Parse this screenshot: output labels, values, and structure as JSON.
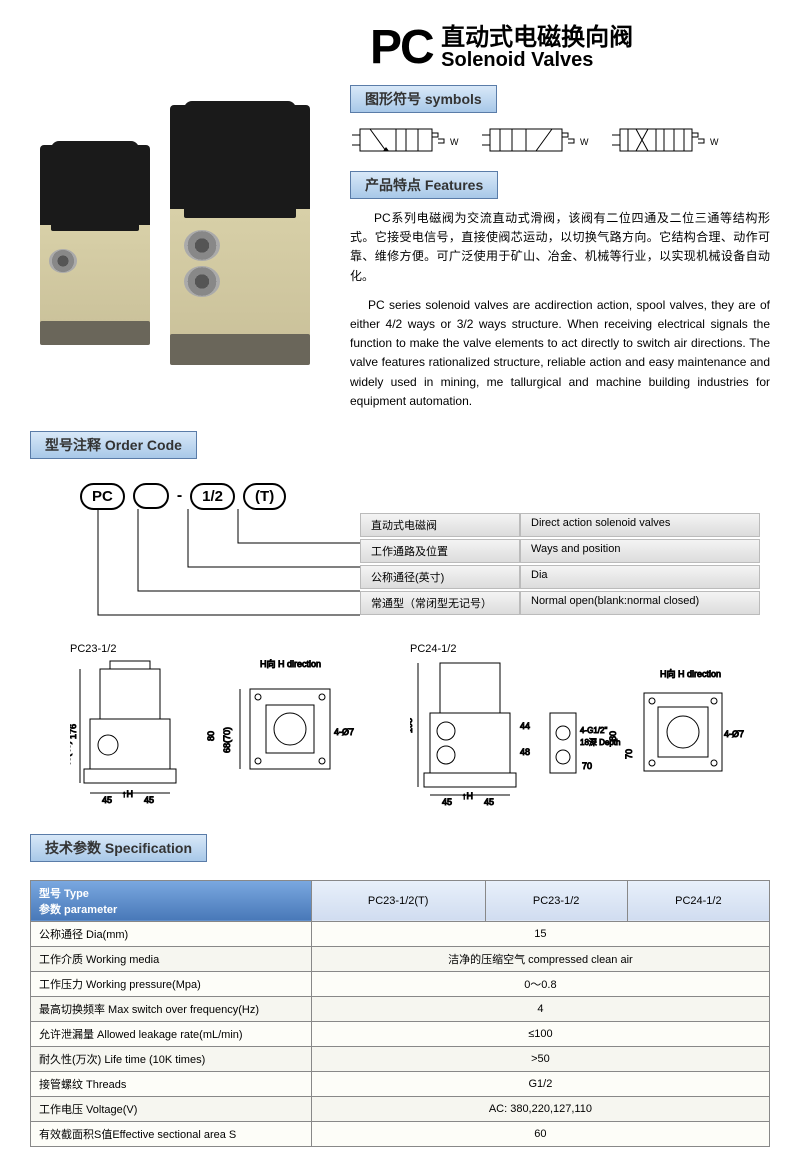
{
  "title": {
    "prefix": "PC",
    "cn": "直动式电磁换向阀",
    "en": "Solenoid Valves"
  },
  "sections": {
    "symbols": "图形符号 symbols",
    "features": "产品特点 Features",
    "order": "型号注释 Order Code",
    "spec": "技术参数 Specification"
  },
  "features": {
    "cn": "PC系列电磁阀为交流直动式滑阀，该阀有二位四通及二位三通等结构形式。它接受电信号，直接使阀芯运动，以切换气路方向。它结构合理、动作可靠、维修方便。可广泛使用于矿山、冶金、机械等行业，以实现机械设备自动化。",
    "en": "PC series solenoid valves are acdirection action, spool valves, they are of either 4/2 ways or 3/2 ways structure. When receiving electrical signals the function to make the valve elements to act directly to switch air directions. The valve features rationalized structure, reliable action and easy maintenance and widely used in mining, me tallurgical and machine building industries for equipment automation."
  },
  "order": {
    "codes": [
      "PC",
      "",
      "-",
      "1/2",
      "(T)"
    ],
    "rows": [
      {
        "cn": "直动式电磁阀",
        "en": "Direct action solenoid valves"
      },
      {
        "cn": "工作通路及位置",
        "en": "Ways and position"
      },
      {
        "cn": "公称通径(英寸)",
        "en": "Dia"
      },
      {
        "cn": "常通型（常闭型无记号）",
        "en": "Normal open(blank:normal closed)"
      }
    ]
  },
  "drawings": {
    "left_label": "PC23-1/2",
    "right_label": "PC24-1/2",
    "h_direction": "H向 H direction"
  },
  "spec": {
    "type_label": "型号 Type",
    "param_label": "参数 parameter",
    "cols": [
      "PC23-1/2(T)",
      "PC23-1/2",
      "PC24-1/2"
    ],
    "rows": [
      {
        "param": "公称通径 Dia(mm)",
        "vals": [
          "15"
        ],
        "span": 3
      },
      {
        "param": "工作介质 Working media",
        "vals": [
          "洁净的压缩空气 compressed clean air"
        ],
        "span": 3
      },
      {
        "param": "工作压力 Working pressure(Mpa)",
        "vals": [
          "0～0.8"
        ],
        "span": 3
      },
      {
        "param": "最高切换频率 Max switch over frequency(Hz)",
        "vals": [
          "4"
        ],
        "span": 3
      },
      {
        "param": "允许泄漏量 Allowed leakage rate(mL/min)",
        "vals": [
          "≤100"
        ],
        "span": 3
      },
      {
        "param": "耐久性(万次) Life time (10K times)",
        "vals": [
          ">50"
        ],
        "span": 3
      },
      {
        "param": "接管螺纹 Threads",
        "vals": [
          "G1/2"
        ],
        "span": 3
      },
      {
        "param": "工作电压 Voltage(V)",
        "vals": [
          "AC: 380,220,127,110"
        ],
        "span": 3
      },
      {
        "param": "有效截面积S值Effective sectional area S",
        "vals": [
          "60"
        ],
        "span": 3
      }
    ]
  },
  "colors": {
    "tag_bg_top": "#d8e8f8",
    "tag_bg_bot": "#a8c8e8",
    "tag_border": "#5a7ca8",
    "table_hdr_top": "#7aa8e0",
    "table_hdr_bot": "#4878b8"
  }
}
